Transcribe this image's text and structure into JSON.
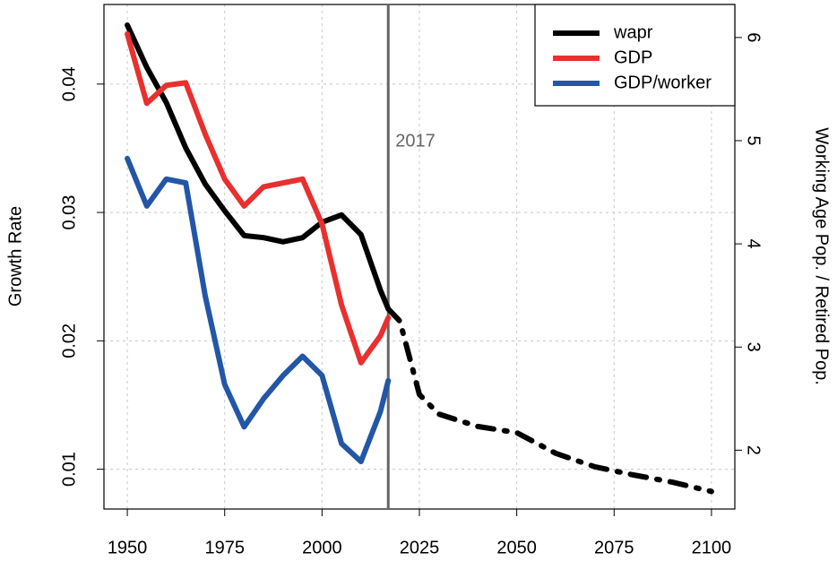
{
  "chart_data": {
    "type": "line",
    "ylabel": "Growth Rate",
    "y2label": "Working Age Pop. / Retired Pop.",
    "x": [
      1950,
      1955,
      1960,
      1965,
      1970,
      1975,
      1980,
      1985,
      1990,
      1995,
      2000,
      2005,
      2010,
      2015,
      2017,
      2020,
      2025,
      2030,
      2040,
      2050,
      2060,
      2070,
      2080,
      2090,
      2100
    ],
    "series": [
      {
        "name": "wapr",
        "color": "#000000",
        "axis": "y2",
        "values": [
          6.12,
          5.71,
          5.37,
          4.93,
          4.58,
          4.32,
          4.08,
          4.06,
          4.02,
          4.06,
          4.21,
          4.28,
          4.09,
          3.55,
          3.37,
          3.25,
          2.54,
          2.35,
          2.23,
          2.17,
          1.97,
          1.84,
          1.76,
          1.69,
          1.6
        ]
      },
      {
        "name": "GDP",
        "color": "#e8302e",
        "values": [
          0.0439,
          0.0385,
          0.0399,
          0.0401,
          0.0361,
          0.0326,
          0.0305,
          0.032,
          0.0323,
          0.0326,
          0.0291,
          0.0228,
          0.0183,
          0.0204,
          0.0218,
          null,
          null,
          null,
          null,
          null,
          null,
          null,
          null,
          null,
          null
        ]
      },
      {
        "name": "GDP/worker",
        "color": "#2356a6",
        "values": [
          0.0342,
          0.0305,
          0.0326,
          0.0323,
          0.0235,
          0.0166,
          0.0133,
          0.0155,
          0.0173,
          0.0188,
          0.0173,
          0.012,
          0.0106,
          0.0145,
          0.0169,
          null,
          null,
          null,
          null,
          null,
          null,
          null,
          null,
          null,
          null
        ]
      }
    ],
    "vline": 2017,
    "xlim": [
      1944,
      2106
    ],
    "xticks": [
      1950,
      1975,
      2000,
      2025,
      2050,
      2075,
      2100
    ],
    "ylim": [
      0.0069,
      0.0462
    ],
    "yticks": [
      0.01,
      0.02,
      0.03,
      0.04
    ],
    "y2lim": [
      1.43,
      6.32
    ],
    "y2ticks": [
      2,
      3,
      4,
      5,
      6
    ],
    "grid": true,
    "legend": "top-right"
  }
}
